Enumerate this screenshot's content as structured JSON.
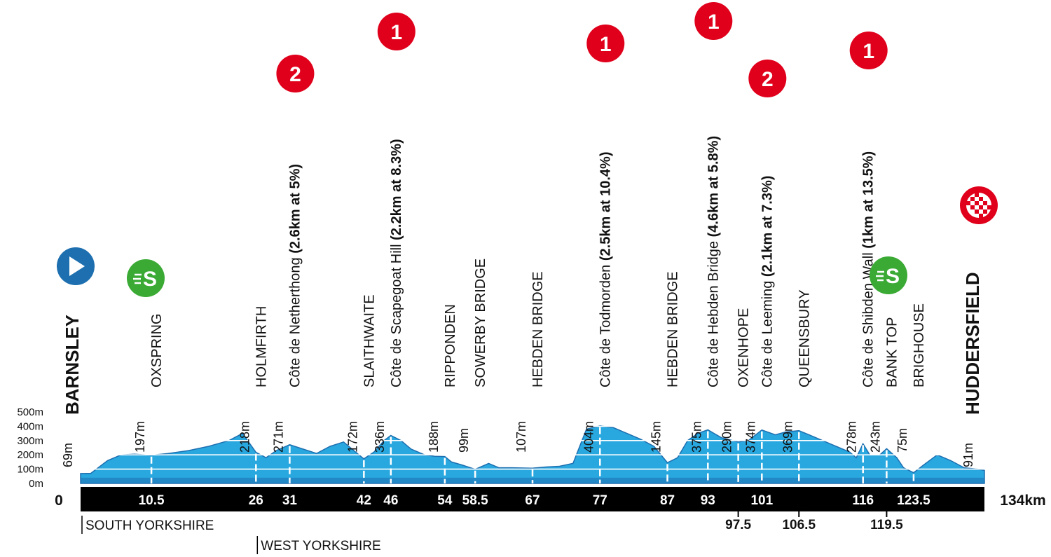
{
  "chart_data": {
    "type": "area",
    "title": "",
    "distance_unit_label": "134km",
    "x_range": [
      0,
      134
    ],
    "y_range": [
      0,
      500
    ],
    "y_ticks": [
      "0m",
      "100m",
      "200m",
      "300m",
      "400m",
      "500m"
    ],
    "colors": {
      "profile_fill": "#29a8e0",
      "profile_band": "#1d6fb0",
      "km_bar": "#000000",
      "kom": "#e0001b",
      "sprint": "#3aaa35",
      "start": "#1d6fb0"
    },
    "profile": {
      "x": [
        0,
        1.5,
        4,
        6,
        8,
        10.5,
        13,
        16,
        19,
        22,
        24,
        26,
        27.5,
        29,
        31,
        33,
        35,
        37,
        39,
        40.5,
        42,
        43.5,
        45,
        46,
        47.5,
        49,
        51,
        52.5,
        54,
        55,
        56.5,
        58.5,
        60.5,
        62,
        64,
        67,
        69,
        71,
        73,
        75,
        77,
        79,
        81,
        83,
        85,
        87,
        88.5,
        90,
        91.5,
        93,
        95,
        97.5,
        99,
        101,
        103,
        104.5,
        106.5,
        108,
        110,
        112,
        114,
        115,
        116,
        117,
        118.5,
        119.5,
        121,
        122,
        123.5,
        125,
        127,
        129,
        131,
        133,
        134
      ],
      "elevation": [
        69,
        70,
        160,
        200,
        205,
        197,
        210,
        230,
        260,
        300,
        350,
        218,
        180,
        230,
        271,
        240,
        210,
        260,
        290,
        230,
        172,
        220,
        300,
        336,
        300,
        240,
        200,
        190,
        188,
        150,
        130,
        99,
        140,
        110,
        110,
        107,
        115,
        120,
        140,
        380,
        404,
        390,
        350,
        310,
        260,
        145,
        180,
        300,
        350,
        375,
        320,
        290,
        300,
        374,
        340,
        360,
        369,
        340,
        300,
        260,
        220,
        180,
        278,
        200,
        200,
        243,
        180,
        110,
        75,
        130,
        200,
        160,
        110,
        100,
        91
      ]
    },
    "km_markers": [
      {
        "km": 10.5,
        "label": "10.5",
        "row": "bar"
      },
      {
        "km": 26,
        "label": "26",
        "row": "bar"
      },
      {
        "km": 31,
        "label": "31",
        "row": "bar"
      },
      {
        "km": 42,
        "label": "42",
        "row": "bar"
      },
      {
        "km": 46,
        "label": "46",
        "row": "bar"
      },
      {
        "km": 54,
        "label": "54",
        "row": "bar"
      },
      {
        "km": 58.5,
        "label": "58.5",
        "row": "bar"
      },
      {
        "km": 67,
        "label": "67",
        "row": "bar"
      },
      {
        "km": 77,
        "label": "77",
        "row": "bar"
      },
      {
        "km": 87,
        "label": "87",
        "row": "bar"
      },
      {
        "km": 93,
        "label": "93",
        "row": "bar"
      },
      {
        "km": 97.5,
        "label": "97.5",
        "row": "below"
      },
      {
        "km": 101,
        "label": "101",
        "row": "bar"
      },
      {
        "km": 106.5,
        "label": "106.5",
        "row": "below"
      },
      {
        "km": 116,
        "label": "116",
        "row": "bar"
      },
      {
        "km": 119.5,
        "label": "119.5",
        "row": "below"
      },
      {
        "km": 123.5,
        "label": "123.5",
        "row": "bar"
      }
    ],
    "start_km_label": "0",
    "locations": [
      {
        "km": 0,
        "name": "BARNSLEY",
        "alt": "69m",
        "style": "end"
      },
      {
        "km": 10.5,
        "name": "OXSPRING",
        "alt": "197m"
      },
      {
        "km": 26,
        "name": "HOLMFIRTH",
        "alt": "218m"
      },
      {
        "km": 31,
        "name": "Côte de Netherthong",
        "climb": "(2.6km at 5%)",
        "alt": "271m"
      },
      {
        "km": 42,
        "name": "SLAITHWAITE",
        "alt": "172m"
      },
      {
        "km": 46,
        "name": "Côte de Scapegoat Hill",
        "climb": "(2.2km at 8.3%)",
        "alt": "336m"
      },
      {
        "km": 54,
        "name": "RIPPONDEN",
        "alt": "188m"
      },
      {
        "km": 58.5,
        "name": "SOWERBY BRIDGE",
        "alt": "99m"
      },
      {
        "km": 67,
        "name": "HEBDEN BRIDGE",
        "alt": "107m"
      },
      {
        "km": 77,
        "name": "Côte de Todmorden",
        "climb": "(2.5km at 10.4%)",
        "alt": "404m"
      },
      {
        "km": 87,
        "name": "HEBDEN BRIDGE",
        "alt": "145m"
      },
      {
        "km": 93,
        "name": "Côte de Hebden Bridge",
        "climb": "(4.6km at 5.8%)",
        "alt": "375m"
      },
      {
        "km": 97.5,
        "name": "OXENHOPE",
        "alt": "290m"
      },
      {
        "km": 101,
        "name": "Côte de Leeming",
        "climb": "(2.1km at 7.3%)",
        "alt": "374m"
      },
      {
        "km": 106.5,
        "name": "QUEENSBURY",
        "alt": "369m"
      },
      {
        "km": 116,
        "name": "Côte de Shibden Wall",
        "climb": "(1km at 13.5%)",
        "alt": "278m"
      },
      {
        "km": 119.5,
        "name": "BANK TOP",
        "alt": "243m"
      },
      {
        "km": 123.5,
        "name": "BRIGHOUSE",
        "alt": "75m"
      },
      {
        "km": 134,
        "name": "HUDDERSFIELD",
        "alt": "91m",
        "style": "end"
      }
    ],
    "kom_badges": [
      {
        "km": 31,
        "category": "2"
      },
      {
        "km": 46,
        "category": "1"
      },
      {
        "km": 77,
        "category": "1"
      },
      {
        "km": 93,
        "category": "1"
      },
      {
        "km": 101,
        "category": "2"
      },
      {
        "km": 116,
        "category": "1"
      }
    ],
    "sprint_badges": [
      {
        "km": 10.5,
        "label": "S",
        "icon": "sprint-icon"
      },
      {
        "km": 119.5,
        "label": "S",
        "icon": "sprint-icon"
      }
    ],
    "start_icon": "play-icon",
    "finish_icon": "checkered-flag-icon",
    "regions": [
      {
        "km": 0,
        "name": "SOUTH YORKSHIRE"
      },
      {
        "km": 26,
        "name": "WEST YORKSHIRE"
      }
    ]
  }
}
